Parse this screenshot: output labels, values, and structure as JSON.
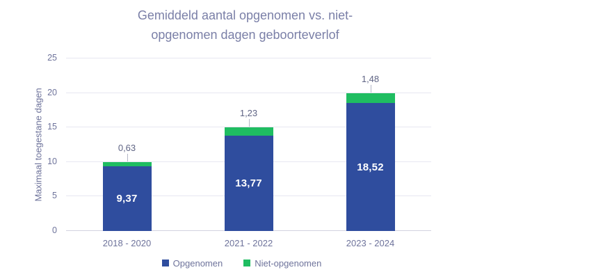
{
  "title": {
    "line1": "Gemiddeld aantal opgenomen vs. niet-",
    "line2": "opgenomen dagen geboorteverlof"
  },
  "y_axis": {
    "title": "Maximaal toegestane dagen"
  },
  "legend": {
    "items": [
      {
        "label": "Opgenomen",
        "color": "#2f4d9e"
      },
      {
        "label": "Niet-opgenomen",
        "color": "#1fbd61"
      }
    ]
  },
  "colors": {
    "title_text": "#7a7fa7",
    "axis_text": "#6e739b",
    "data_label_text": "#5f6484",
    "gridline": "#e7e7f1",
    "baseline": "#d2d2df",
    "opgenomen_blue": "#2f4d9e",
    "niet_opgenomen_green": "#1fbd61"
  },
  "chart_data": {
    "type": "bar",
    "stacked": true,
    "title": "Gemiddeld aantal opgenomen vs. niet-opgenomen dagen geboorteverlof",
    "xlabel": "",
    "ylabel": "Maximaal toegestane dagen",
    "categories": [
      "2018 - 2020",
      "2021 - 2022",
      "2023 - 2024"
    ],
    "series": [
      {
        "name": "Opgenomen",
        "color": "#2f4d9e",
        "values": [
          9.37,
          13.77,
          18.52
        ],
        "labels": [
          "9,37",
          "13,77",
          "18,52"
        ],
        "label_position": "inside"
      },
      {
        "name": "Niet-opgenomen",
        "color": "#1fbd61",
        "values": [
          0.63,
          1.23,
          1.48
        ],
        "labels": [
          "0,63",
          "1,23",
          "1,48"
        ],
        "label_position": "above-with-leader"
      }
    ],
    "stack_totals": [
      10,
      15,
      20
    ],
    "ylim": [
      0,
      25
    ],
    "yticks": [
      0,
      5,
      10,
      15,
      20,
      25
    ],
    "grid": true,
    "legend_position": "bottom"
  }
}
